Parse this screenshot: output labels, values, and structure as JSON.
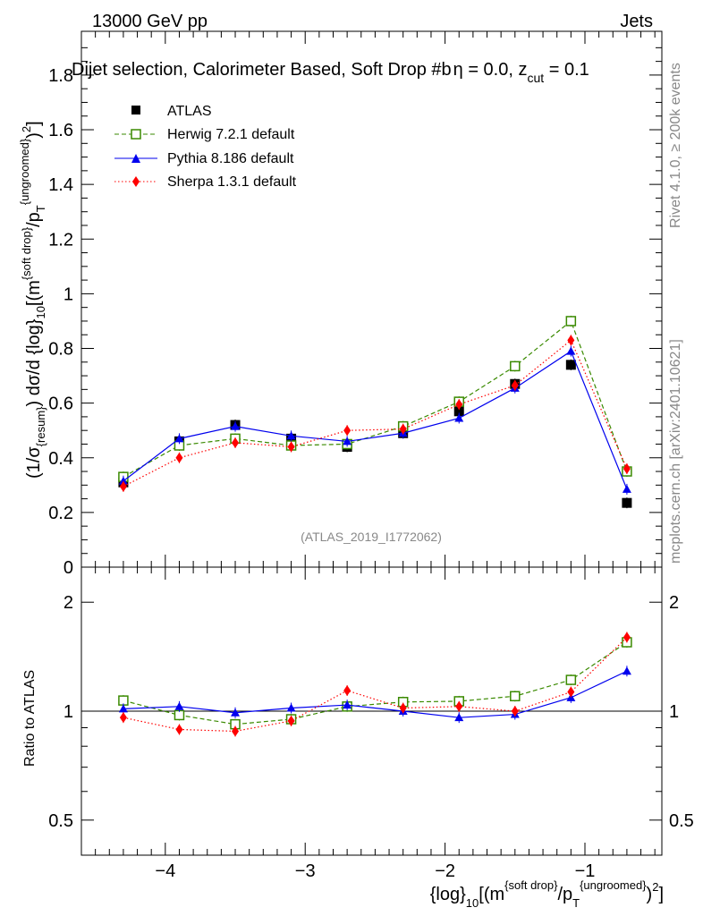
{
  "header": {
    "energy": "13000 GeV pp",
    "process": "Jets"
  },
  "plot_title": {
    "main": "Dijet selection, Calorimeter Based, Soft Drop #b",
    "eta_part": "η = 0.0, z",
    "cut_sub": "cut",
    "tail": " = 0.1"
  },
  "side_labels": {
    "rivet": "Rivet 4.1.0, ≥ 200k events",
    "mcplots": "mcplots.cern.ch [arXiv:2401.10621]"
  },
  "watermark": "(ATLAS_2019_I1772062)",
  "axis_text": {
    "y_open": "(1/σ",
    "y_resum": "{resum}",
    "y_mid": ") dσ/d {log}",
    "y_sub10": "10",
    "y_m": "[(m",
    "y_sd": "{soft drop}",
    "y_p": "/p",
    "y_T": "T",
    "y_ungr": "{ungroomed}",
    "y_close": ")",
    "y_sq": "2",
    "y_end": "]",
    "x_log": "{log}",
    "x_sub10": "10",
    "x_m": "[(m",
    "x_sd": "{soft drop}",
    "x_p": "/p",
    "x_T": "T",
    "x_ungr": "{ungroomed}",
    "x_close": ")",
    "x_sq": "2",
    "x_end": "]",
    "ratio_label": "Ratio to ATLAS"
  },
  "colors": {
    "atlas": "#000000",
    "herwig": "#3a8a00",
    "pythia": "#0000ee",
    "sherpa": "#ff0000"
  },
  "chart_data": [
    {
      "type": "line",
      "panel": "main",
      "xlim": [
        -4.6,
        -0.45
      ],
      "ylim": [
        0,
        1.96
      ],
      "x_ticks": [
        -4,
        -3,
        -2,
        -1
      ],
      "x_tick_labels": [
        "−4",
        "−3",
        "−2",
        "−1"
      ],
      "y_ticks": [
        0,
        0.2,
        0.4,
        0.6,
        0.8,
        1,
        1.2,
        1.4,
        1.6,
        1.8
      ],
      "y_tick_labels": [
        "0",
        "0.2",
        "0.4",
        "0.6",
        "0.8",
        "1",
        "1.2",
        "1.4",
        "1.6",
        "1.8"
      ],
      "x": [
        -4.3,
        -3.9,
        -3.5,
        -3.1,
        -2.7,
        -2.3,
        -1.9,
        -1.5,
        -1.1,
        -0.7
      ],
      "series": [
        {
          "name": "ATLAS",
          "key": "atlas",
          "style": "points",
          "values": [
            0.31,
            0.46,
            0.52,
            0.47,
            0.44,
            0.49,
            0.57,
            0.67,
            0.74,
            0.235
          ]
        },
        {
          "name": "Herwig 7.2.1 default",
          "key": "herwig",
          "style": "dashed",
          "values": [
            0.33,
            0.445,
            0.47,
            0.445,
            0.45,
            0.515,
            0.605,
            0.735,
            0.9,
            0.35
          ]
        },
        {
          "name": "Pythia 8.186 default",
          "key": "pythia",
          "style": "solid",
          "values": [
            0.315,
            0.47,
            0.515,
            0.48,
            0.46,
            0.49,
            0.545,
            0.655,
            0.79,
            0.285
          ]
        },
        {
          "name": "Sherpa 1.3.1 default",
          "key": "sherpa",
          "style": "dotted",
          "values": [
            0.295,
            0.4,
            0.455,
            0.44,
            0.5,
            0.505,
            0.595,
            0.665,
            0.83,
            0.36
          ]
        }
      ]
    },
    {
      "type": "line",
      "panel": "ratio",
      "xlim": [
        -4.6,
        -0.45
      ],
      "ylim": [
        0.4,
        2.5
      ],
      "log_y": true,
      "y_ticks": [
        0.5,
        1,
        2
      ],
      "y_tick_labels": [
        "0.5",
        "1",
        "2"
      ],
      "x": [
        -4.3,
        -3.9,
        -3.5,
        -3.1,
        -2.7,
        -2.3,
        -1.9,
        -1.5,
        -1.1,
        -0.7
      ],
      "series": [
        {
          "name": "Herwig 7.2.1 default",
          "key": "herwig",
          "style": "dashed",
          "values": [
            1.07,
            0.975,
            0.92,
            0.95,
            1.03,
            1.06,
            1.065,
            1.1,
            1.22,
            1.55
          ]
        },
        {
          "name": "Pythia 8.186 default",
          "key": "pythia",
          "style": "solid",
          "values": [
            1.015,
            1.03,
            0.99,
            1.02,
            1.04,
            1.0,
            0.96,
            0.98,
            1.09,
            1.29
          ]
        },
        {
          "name": "Sherpa 1.3.1 default",
          "key": "sherpa",
          "style": "dotted",
          "values": [
            0.96,
            0.89,
            0.88,
            0.94,
            1.14,
            1.02,
            1.03,
            1.0,
            1.13,
            1.6
          ]
        }
      ]
    }
  ]
}
